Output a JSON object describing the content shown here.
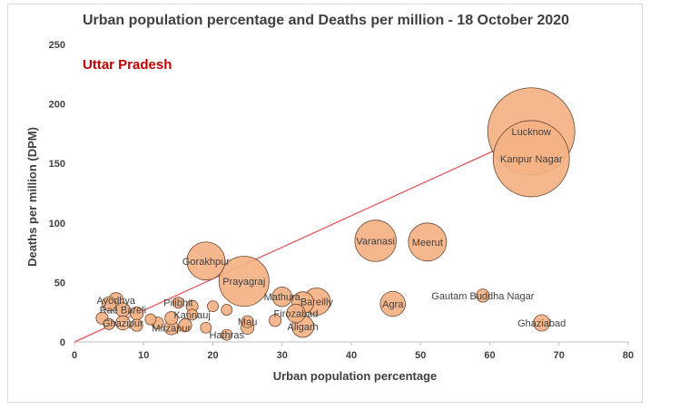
{
  "chart_data": {
    "type": "scatter",
    "title": "Urban population percentage and Deaths per million - 18 October 2020",
    "annotation": "Uttar Pradesh",
    "xlabel": "Urban population percentage",
    "ylabel": "Deaths per million (DPM)",
    "xlim": [
      0,
      80
    ],
    "ylim": [
      0,
      250
    ],
    "xticks": [
      0,
      10,
      20,
      30,
      40,
      50,
      60,
      70,
      80
    ],
    "yticks": [
      0,
      50,
      100,
      150,
      200,
      250
    ],
    "grid": false,
    "trendline": {
      "from": [
        0,
        0
      ],
      "to": [
        66,
        175
      ]
    },
    "colors": {
      "bubble": "#f4b183",
      "trend": "#e15759",
      "annotation": "#c00000"
    },
    "points": [
      {
        "label": "Lucknow",
        "x": 66,
        "y": 177,
        "size": 8
      },
      {
        "label": "Kanpur Nagar",
        "x": 66,
        "y": 154,
        "size": 7
      },
      {
        "label": "Varanasi",
        "x": 43.5,
        "y": 85,
        "size": 3.8
      },
      {
        "label": "Meerut",
        "x": 51,
        "y": 84,
        "size": 3.5
      },
      {
        "label": "Gorakhpur",
        "x": 19,
        "y": 68,
        "size": 3.5
      },
      {
        "label": "Prayagraj",
        "x": 24.5,
        "y": 51,
        "size": 4.6
      },
      {
        "label": "Agra",
        "x": 46,
        "y": 32,
        "size": 2.3
      },
      {
        "label": "Gautam Buddha Nagar",
        "x": 59,
        "y": 39,
        "size": 1.2
      },
      {
        "label": "Ghaziabad",
        "x": 67.5,
        "y": 16,
        "size": 1.5
      },
      {
        "label": "Mathura",
        "x": 30,
        "y": 38,
        "size": 1.8
      },
      {
        "label": "Bareilly",
        "x": 35,
        "y": 34,
        "size": 2.5
      },
      {
        "label": "",
        "x": 33,
        "y": 33,
        "size": 2.0
      },
      {
        "label": "Firozabad",
        "x": 32,
        "y": 24,
        "size": 1.7
      },
      {
        "label": "",
        "x": 29,
        "y": 18,
        "size": 1.1
      },
      {
        "label": "Aligarh",
        "x": 33,
        "y": 13,
        "size": 2.0
      },
      {
        "label": "Ayodhya",
        "x": 6,
        "y": 35,
        "size": 1.4
      },
      {
        "label": "Rae Bareli",
        "x": 7,
        "y": 27,
        "size": 1.3
      },
      {
        "label": "",
        "x": 5,
        "y": 32,
        "size": 1.3
      },
      {
        "label": "",
        "x": 4,
        "y": 20,
        "size": 1.1
      },
      {
        "label": "",
        "x": 9,
        "y": 24,
        "size": 1.2
      },
      {
        "label": "Ghazipur",
        "x": 7,
        "y": 16,
        "size": 1.3
      },
      {
        "label": "",
        "x": 5,
        "y": 15,
        "size": 1.0
      },
      {
        "label": "",
        "x": 9,
        "y": 14,
        "size": 1.1
      },
      {
        "label": "",
        "x": 11,
        "y": 19,
        "size": 1.0
      },
      {
        "label": "Pilibhit",
        "x": 15,
        "y": 33,
        "size": 1.0
      },
      {
        "label": "",
        "x": 17,
        "y": 30,
        "size": 1.1
      },
      {
        "label": "Kannauj",
        "x": 17,
        "y": 23,
        "size": 1.0
      },
      {
        "label": "",
        "x": 14,
        "y": 20,
        "size": 1.2
      },
      {
        "label": "Mirzapur",
        "x": 14,
        "y": 12,
        "size": 1.3
      },
      {
        "label": "",
        "x": 12,
        "y": 16,
        "size": 1.1
      },
      {
        "label": "",
        "x": 16,
        "y": 14,
        "size": 1.2
      },
      {
        "label": "",
        "x": 20,
        "y": 30,
        "size": 1.0
      },
      {
        "label": "",
        "x": 22,
        "y": 27,
        "size": 1.0
      },
      {
        "label": "Mau",
        "x": 25,
        "y": 17,
        "size": 1.1
      },
      {
        "label": "",
        "x": 25,
        "y": 12,
        "size": 1.2
      },
      {
        "label": "Hathras",
        "x": 22,
        "y": 6,
        "size": 1.0
      },
      {
        "label": "",
        "x": 19,
        "y": 12,
        "size": 1.0
      }
    ]
  }
}
